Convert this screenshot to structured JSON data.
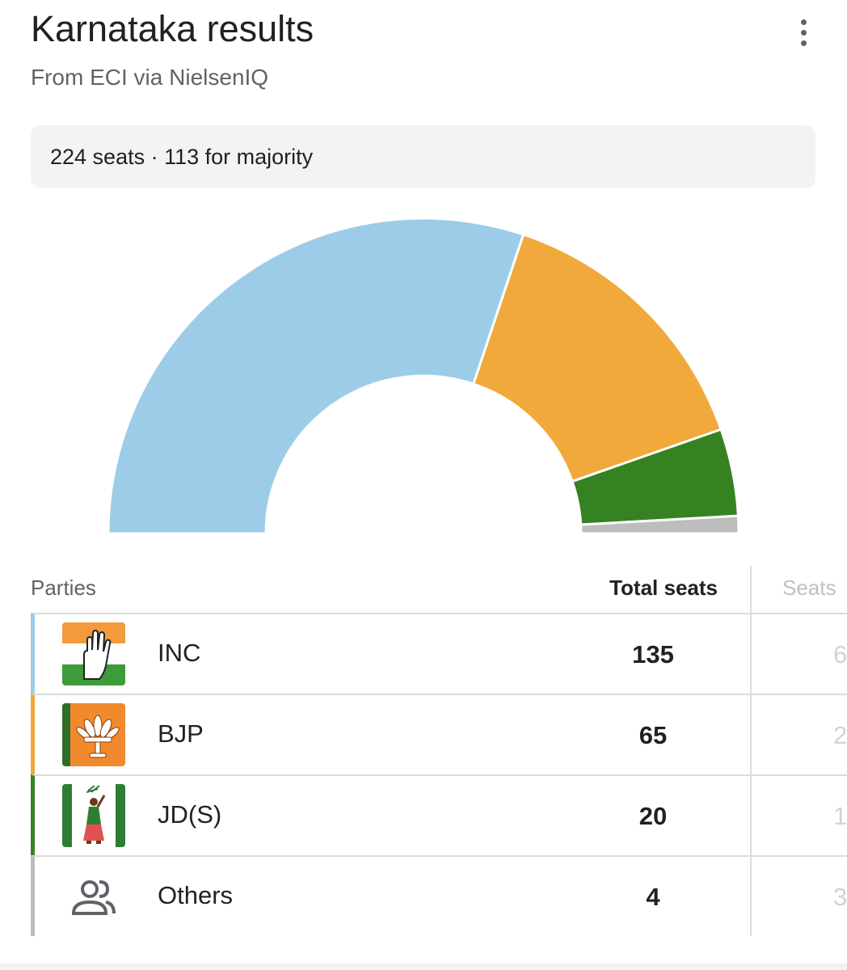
{
  "header": {
    "title": "Karnataka results",
    "subtitle": "From ECI via NielsenIQ",
    "menu_icon": "more-vert-icon"
  },
  "summary": {
    "text": "224 seats · 113 for majority"
  },
  "chart_data": {
    "type": "pie",
    "style": "semicircle-donut",
    "total": 224,
    "categories": [
      "INC",
      "BJP",
      "JD(S)",
      "Others"
    ],
    "values": [
      135,
      65,
      20,
      4
    ],
    "colors": [
      "#9ccce8",
      "#f0a93a",
      "#368222",
      "#bdbdbd"
    ]
  },
  "table": {
    "headers": {
      "parties": "Parties",
      "total_seats": "Total seats",
      "seats": "Seats"
    },
    "rows": [
      {
        "party": "INC",
        "seats": "135",
        "next_col": "6",
        "color": "#9ccce8",
        "logo": "inc-hand-logo-icon"
      },
      {
        "party": "BJP",
        "seats": "65",
        "next_col": "2",
        "color": "#f0a93a",
        "logo": "bjp-lotus-logo-icon"
      },
      {
        "party": "JD(S)",
        "seats": "20",
        "next_col": "1",
        "color": "#368222",
        "logo": "jds-farmer-logo-icon"
      },
      {
        "party": "Others",
        "seats": "4",
        "next_col": "3",
        "color": "#bdbdbd",
        "logo": "group-people-icon"
      }
    ]
  }
}
